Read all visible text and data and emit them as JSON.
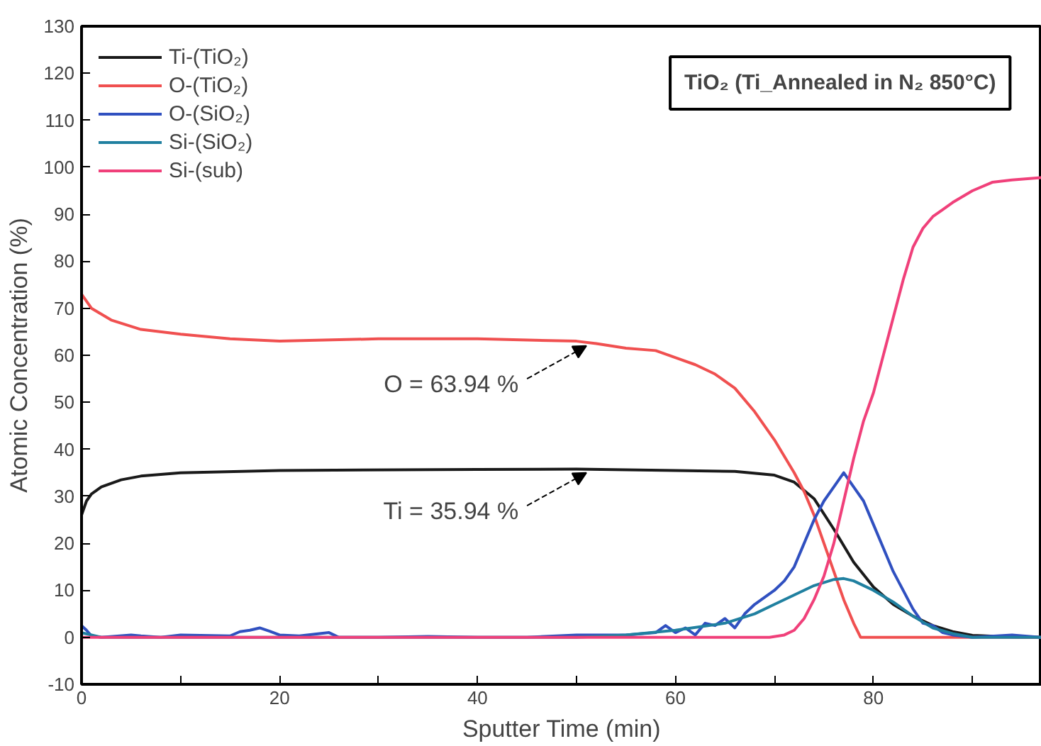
{
  "chart_data": {
    "type": "line",
    "xlabel": "Sputter Time (min)",
    "ylabel": "Atomic Concentration (%)",
    "xlim": [
      0,
      97
    ],
    "ylim": [
      -10,
      130
    ],
    "xticks": [
      0,
      {
        "value": 10,
        "label": null
      },
      20,
      {
        "value": 30,
        "label": null
      },
      40,
      {
        "value": 50,
        "label": null
      },
      60,
      {
        "value": 70,
        "label": null
      },
      80,
      {
        "value": 90,
        "label": null
      }
    ],
    "yticks": [
      -10,
      0,
      10,
      20,
      30,
      40,
      50,
      60,
      70,
      80,
      90,
      100,
      110,
      120,
      130
    ],
    "grid": false,
    "legend": "top left",
    "line_style": "solid",
    "marker": "none",
    "annotations": [
      "TiO₂ (Ti_Annealed in N₂ 850°C)",
      {
        "text": "O = 63.94 %",
        "x": 51,
        "y": 62
      },
      {
        "text": "Ti = 35.94 %",
        "x": 51,
        "y": 35
      }
    ],
    "series": [
      {
        "name": "Ti-(TiO₂)",
        "color": "#1a1a1a",
        "x": [
          0,
          0.5,
          1,
          2,
          4,
          6,
          10,
          20,
          40,
          50,
          60,
          66,
          70,
          72,
          74,
          76,
          78,
          80,
          82,
          84,
          86,
          88,
          90,
          95,
          97
        ],
        "values": [
          26,
          29,
          30.5,
          32,
          33.5,
          34.3,
          35,
          35.5,
          35.7,
          35.8,
          35.5,
          35.3,
          34.5,
          33,
          29.5,
          23,
          16,
          10.7,
          7,
          4.5,
          2.5,
          1.2,
          0.4,
          0,
          0
        ]
      },
      {
        "name": "O-(TiO₂)",
        "color": "#f05050",
        "x": [
          0,
          1,
          3,
          6,
          10,
          15,
          20,
          30,
          40,
          50,
          52,
          55,
          58,
          62,
          64,
          66,
          68,
          70,
          72,
          73,
          74,
          75,
          76,
          77,
          78,
          78.7,
          97
        ],
        "values": [
          73,
          70,
          67.5,
          65.5,
          64.5,
          63.5,
          63,
          63.5,
          63.5,
          63,
          62.5,
          61.5,
          61,
          58,
          56,
          53,
          48,
          42,
          35,
          31,
          26,
          20,
          14,
          8,
          3,
          0,
          0
        ]
      },
      {
        "name": "O-(SiO₂)",
        "color": "#3050c0",
        "x": [
          0,
          0.5,
          1,
          2,
          5,
          6,
          8,
          10,
          15,
          16,
          17,
          18,
          19,
          20,
          22,
          25,
          26,
          30,
          35,
          40,
          45,
          50,
          55,
          58,
          59,
          60,
          61,
          62,
          63,
          64,
          65,
          66,
          67,
          68,
          70,
          71,
          72,
          73,
          74,
          75,
          76,
          77,
          78,
          79,
          80,
          81,
          82,
          83,
          84,
          85,
          86,
          87,
          88,
          90,
          94,
          97
        ],
        "values": [
          2.5,
          1.5,
          0.3,
          0,
          0.5,
          0.3,
          0,
          0.5,
          0.3,
          1.2,
          1.5,
          2,
          1.3,
          0.5,
          0.3,
          1,
          0,
          0,
          0.2,
          0,
          0,
          0.5,
          0.5,
          1,
          2.5,
          1,
          2,
          0.5,
          3,
          2.5,
          4,
          2,
          5,
          7,
          10,
          12,
          15,
          20,
          25,
          29,
          32,
          35,
          32,
          29,
          24,
          19,
          14,
          10,
          6,
          3,
          2.5,
          1,
          0.5,
          0,
          0.5,
          0
        ]
      },
      {
        "name": "Si-(SiO₂)",
        "color": "#2080a0",
        "x": [
          0,
          2,
          50,
          55,
          60,
          65,
          68,
          70,
          72,
          74,
          76,
          77,
          78,
          80,
          82,
          84,
          86,
          88,
          90,
          97
        ],
        "values": [
          1,
          0,
          0,
          0.5,
          1.5,
          3,
          5,
          7,
          9,
          11,
          12.3,
          12.5,
          12,
          10,
          7.5,
          4.5,
          2,
          0.8,
          0,
          0
        ]
      },
      {
        "name": "Si-(sub)",
        "color": "#f0407a",
        "x": [
          0,
          69.5,
          71,
          72,
          73,
          74,
          75,
          76,
          77,
          78,
          79,
          80,
          81,
          82,
          83,
          84,
          85,
          86,
          87,
          88,
          90,
          92,
          94,
          97
        ],
        "values": [
          0,
          0,
          0.5,
          1.5,
          4,
          8,
          13,
          20,
          29,
          38,
          46,
          52,
          60,
          68,
          76,
          83,
          87,
          89.5,
          91,
          92.5,
          95,
          96.8,
          97.3,
          97.8
        ]
      }
    ]
  }
}
